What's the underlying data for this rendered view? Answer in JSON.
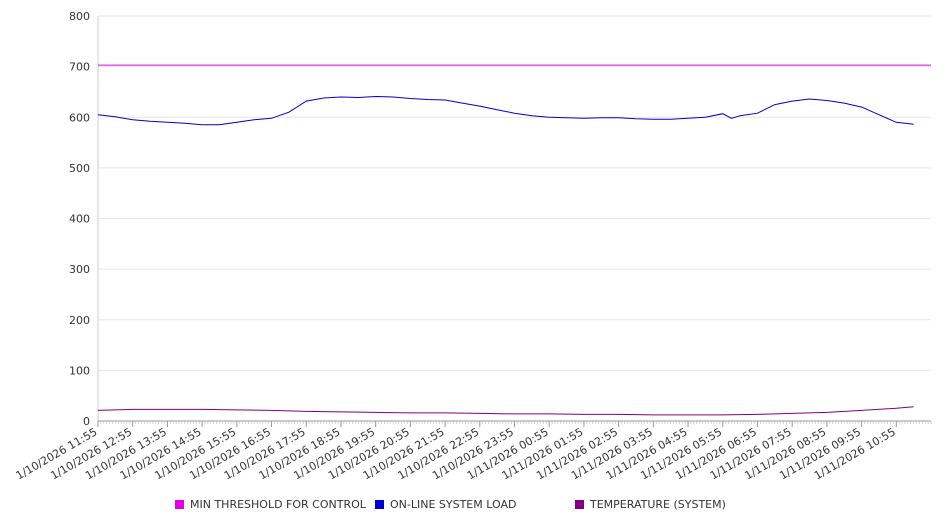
{
  "chart_data": {
    "type": "line",
    "title": "",
    "xlabel": "",
    "ylabel": "",
    "ylim": [
      0,
      800
    ],
    "y_ticks": [
      0,
      100,
      200,
      300,
      400,
      500,
      600,
      700,
      800
    ],
    "x_tick_labels": [
      "1/10/2026 11:55",
      "1/10/2026 12:55",
      "1/10/2026 13:55",
      "1/10/2026 14:55",
      "1/10/2026 15:55",
      "1/10/2026 16:55",
      "1/10/2026 17:55",
      "1/10/2026 18:55",
      "1/10/2026 19:55",
      "1/10/2026 20:55",
      "1/10/2026 21:55",
      "1/10/2026 22:55",
      "1/10/2026 23:55",
      "1/11/2026 00:55",
      "1/11/2026 01:55",
      "1/11/2026 02:55",
      "1/11/2026 03:55",
      "1/11/2026 04:55",
      "1/11/2026 05:55",
      "1/11/2026 06:55",
      "1/11/2026 07:55",
      "1/11/2026 08:55",
      "1/11/2026 09:55",
      "1/11/2026 10:55"
    ],
    "grid": true,
    "legend_position": "bottom",
    "series": [
      {
        "name": "MIN THRESHOLD FOR CONTROL",
        "color": "#e000e0",
        "x": [
          "1/10/2026 11:55",
          "1/11/2026 11:55"
        ],
        "y": [
          703,
          703
        ]
      },
      {
        "name": "ON-LINE SYSTEM LOAD",
        "color": "#0000cc",
        "x": [
          "1/10/2026 11:55",
          "1/10/2026 12:25",
          "1/10/2026 12:55",
          "1/10/2026 13:25",
          "1/10/2026 13:55",
          "1/10/2026 14:25",
          "1/10/2026 14:55",
          "1/10/2026 15:25",
          "1/10/2026 15:55",
          "1/10/2026 16:25",
          "1/10/2026 16:55",
          "1/10/2026 17:25",
          "1/10/2026 17:55",
          "1/10/2026 18:25",
          "1/10/2026 18:55",
          "1/10/2026 19:25",
          "1/10/2026 19:55",
          "1/10/2026 20:25",
          "1/10/2026 20:55",
          "1/10/2026 21:25",
          "1/10/2026 21:55",
          "1/10/2026 22:25",
          "1/10/2026 22:55",
          "1/10/2026 23:25",
          "1/10/2026 23:55",
          "1/11/2026 00:25",
          "1/11/2026 00:55",
          "1/11/2026 01:25",
          "1/11/2026 01:55",
          "1/11/2026 02:25",
          "1/11/2026 02:55",
          "1/11/2026 03:25",
          "1/11/2026 03:55",
          "1/11/2026 04:25",
          "1/11/2026 04:55",
          "1/11/2026 05:25",
          "1/11/2026 05:55",
          "1/11/2026 06:10",
          "1/11/2026 06:25",
          "1/11/2026 06:55",
          "1/11/2026 07:25",
          "1/11/2026 07:55",
          "1/11/2026 08:25",
          "1/11/2026 08:55",
          "1/11/2026 09:25",
          "1/11/2026 09:55",
          "1/11/2026 10:25",
          "1/11/2026 10:55",
          "1/11/2026 11:25"
        ],
        "y": [
          605,
          601,
          595,
          592,
          590,
          588,
          585,
          585,
          590,
          595,
          598,
          610,
          632,
          638,
          640,
          639,
          641,
          640,
          637,
          635,
          634,
          628,
          622,
          615,
          608,
          603,
          600,
          599,
          598,
          599,
          599,
          597,
          596,
          596,
          598,
          600,
          607,
          598,
          603,
          608,
          625,
          632,
          636,
          633,
          628,
          620,
          605,
          590,
          586
        ]
      },
      {
        "name": "TEMPERATURE (SYSTEM)",
        "color": "#800080",
        "x": [
          "1/10/2026 11:55",
          "1/10/2026 12:55",
          "1/10/2026 13:55",
          "1/10/2026 14:55",
          "1/10/2026 15:55",
          "1/10/2026 16:55",
          "1/10/2026 17:55",
          "1/10/2026 18:55",
          "1/10/2026 19:55",
          "1/10/2026 20:55",
          "1/10/2026 21:55",
          "1/10/2026 22:55",
          "1/10/2026 23:55",
          "1/11/2026 00:55",
          "1/11/2026 01:55",
          "1/11/2026 02:55",
          "1/11/2026 03:55",
          "1/11/2026 04:55",
          "1/11/2026 05:55",
          "1/11/2026 06:55",
          "1/11/2026 07:55",
          "1/11/2026 08:55",
          "1/11/2026 09:55",
          "1/11/2026 10:55",
          "1/11/2026 11:25"
        ],
        "y": [
          21,
          23,
          23,
          23,
          22,
          21,
          19,
          18,
          17,
          16,
          16,
          15,
          14,
          14,
          13,
          13,
          12,
          12,
          12,
          13,
          15,
          17,
          21,
          25,
          28
        ]
      }
    ]
  }
}
